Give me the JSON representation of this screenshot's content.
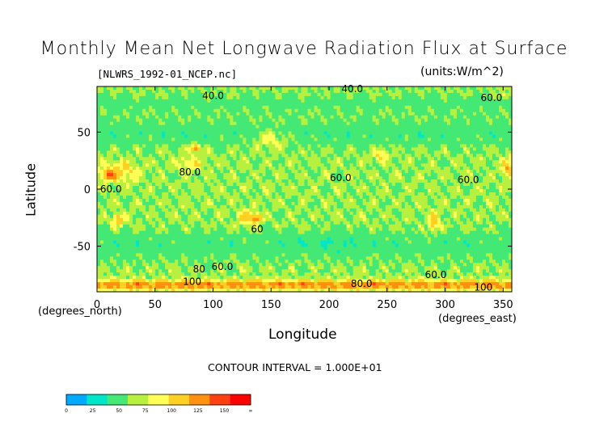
{
  "chart_data": {
    "type": "heatmap",
    "title": "Monthly Mean Net Longwave Radiation Flux at Surface",
    "subtitle_left": "[NLWRS_1992-01_NCEP.nc]",
    "subtitle_right": "(units:W/m^2)",
    "xlabel": "Longitude",
    "ylabel": "Latitude",
    "x_unit": "(degrees_north)",
    "y_unit": "(degrees_east)",
    "xlim": [
      0,
      357.5
    ],
    "ylim": [
      -90,
      90
    ],
    "x_ticks": [
      0,
      50,
      100,
      150,
      200,
      250,
      300,
      350
    ],
    "y_ticks": [
      50,
      0,
      -50
    ],
    "contour_interval": "CONTOUR INTERVAL = 1.000E+01",
    "contour_labels": [
      {
        "text": "40.0",
        "x": 100,
        "y": 82
      },
      {
        "text": "40.0",
        "x": 220,
        "y": 88
      },
      {
        "text": "60.0",
        "x": 340,
        "y": 80
      },
      {
        "text": "80.0",
        "x": 80,
        "y": 15
      },
      {
        "text": "60.0",
        "x": 12,
        "y": 0
      },
      {
        "text": "60.0",
        "x": 210,
        "y": 10
      },
      {
        "text": "60.0",
        "x": 320,
        "y": 8
      },
      {
        "text": "60",
        "x": 138,
        "y": -35
      },
      {
        "text": "80",
        "x": 88,
        "y": -70
      },
      {
        "text": "60.0",
        "x": 108,
        "y": -68
      },
      {
        "text": "100",
        "x": 82,
        "y": -81
      },
      {
        "text": "80.0",
        "x": 228,
        "y": -83
      },
      {
        "text": "60.0",
        "x": 292,
        "y": -75
      },
      {
        "text": "100",
        "x": 333,
        "y": -86
      }
    ],
    "colorbar": {
      "levels": [
        "0",
        "25",
        "50",
        "75",
        "100",
        "125",
        "150",
        "∞"
      ],
      "colors": [
        "#00aaff",
        "#00e6c8",
        "#44e874",
        "#b8f040",
        "#ffff55",
        "#ffd024",
        "#ff9010",
        "#ff4010",
        "#ff0000"
      ]
    },
    "grid": false
  }
}
